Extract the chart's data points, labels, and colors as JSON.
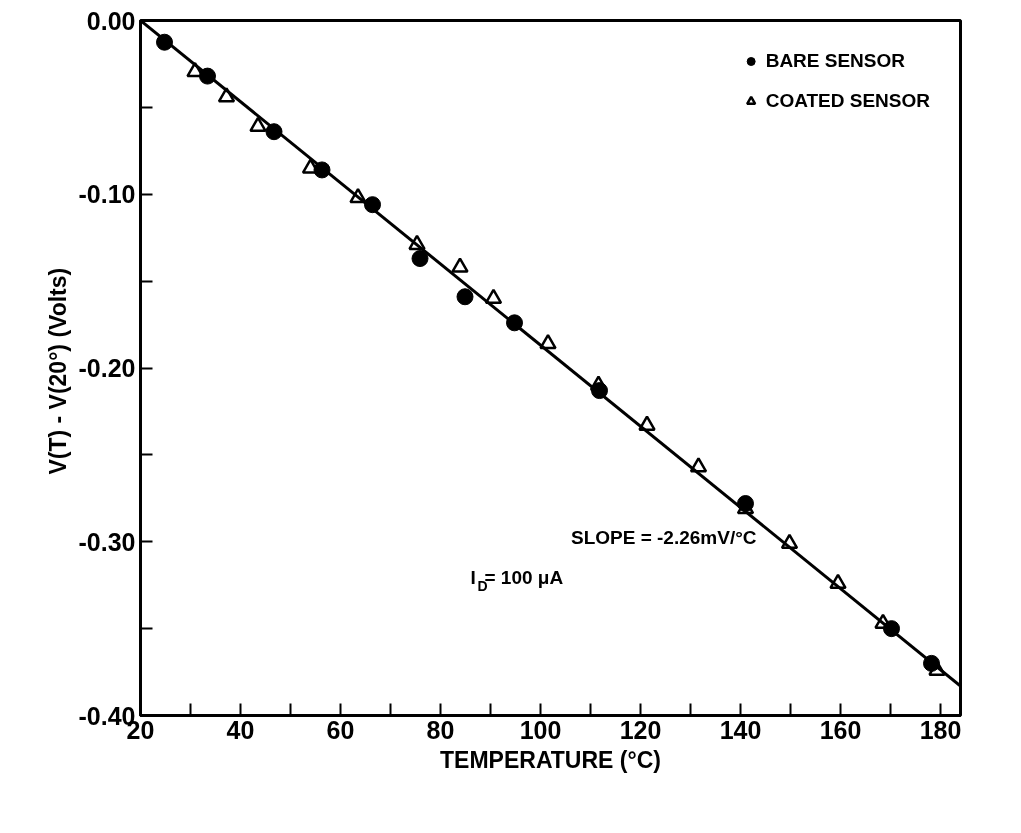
{
  "chart_data": {
    "type": "scatter",
    "xlabel": "TEMPERATURE (°C)",
    "ylabel": "V(T) - V(20°)  (Volts)",
    "xlim": [
      20,
      184
    ],
    "ylim": [
      -0.4,
      0.0
    ],
    "xticks": [
      20,
      {
        "value": 30,
        "label": null
      },
      40,
      {
        "value": 50,
        "label": null
      },
      60,
      {
        "value": 70,
        "label": null
      },
      80,
      {
        "value": 90,
        "label": null
      },
      100,
      {
        "value": 110,
        "label": null
      },
      120,
      {
        "value": 130,
        "label": null
      },
      140,
      {
        "value": 150,
        "label": null
      },
      160,
      {
        "value": 170,
        "label": null
      },
      180
    ],
    "yticks": [
      {
        "value": 0.0,
        "label": "0.00"
      },
      {
        "value": -0.05,
        "label": null
      },
      {
        "value": -0.1,
        "label": "-0.10"
      },
      {
        "value": -0.15,
        "label": null
      },
      {
        "value": -0.2,
        "label": "-0.20"
      },
      {
        "value": -0.25,
        "label": null
      },
      {
        "value": -0.3,
        "label": "-0.30"
      },
      {
        "value": -0.35,
        "label": null
      },
      {
        "value": -0.4,
        "label": "-0.40"
      }
    ],
    "series": [
      {
        "name": "BARE SENSOR",
        "color": "#000000",
        "marker": "circle",
        "x": [
          24.8,
          33.4,
          46.7,
          56.3,
          66.4,
          75.9,
          84.9,
          94.8,
          111.8,
          141.0,
          170.2,
          178.2
        ],
        "values": [
          -0.0125,
          -0.032,
          -0.064,
          -0.086,
          -0.106,
          -0.137,
          -0.159,
          -0.174,
          -0.213,
          -0.278,
          -0.35,
          -0.37
        ]
      },
      {
        "name": "COATED SENSOR",
        "color": "#000000",
        "marker": "triangle",
        "x": [
          30.9,
          37.2,
          43.5,
          54.0,
          63.5,
          75.3,
          83.9,
          90.6,
          101.5,
          111.6,
          121.3,
          131.6,
          141.0,
          149.8,
          159.5,
          168.5,
          179.3
        ],
        "values": [
          -0.0295,
          -0.044,
          -0.061,
          -0.085,
          -0.102,
          -0.129,
          -0.142,
          -0.16,
          -0.186,
          -0.21,
          -0.233,
          -0.257,
          -0.281,
          -0.301,
          -0.324,
          -0.347,
          -0.374
        ]
      },
      {
        "type": "line",
        "color": "#000000",
        "x": [
          20,
          184
        ],
        "values": [
          0.0,
          -0.383
        ]
      }
    ],
    "annotations": [
      {
        "text": "SLOPE = -2.26mV/°C",
        "x": 146,
        "y": -0.292
      },
      "I$_{D}$= 100 μA"
    ],
    "legend": "top right",
    "grid": false
  }
}
